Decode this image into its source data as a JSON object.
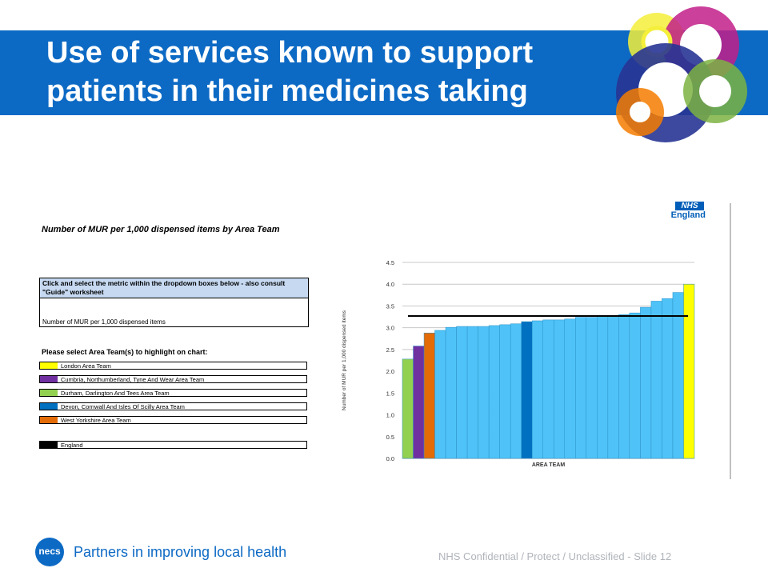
{
  "slide": {
    "title": "Use of services known to support patients in their medicines taking",
    "footer_tagline": "Partners in improving local health",
    "footer_right": "NHS Confidential / Protect / Unclassified - Slide 12",
    "logo_text": "necs",
    "colors": {
      "banner": "#0d6ac4"
    }
  },
  "panel": {
    "title": "Number of MUR per 1,000 dispensed items by Area Team",
    "dropdown_header": "Click and select the metric within the dropdown boxes below - also consult \"Guide\" worksheet",
    "dropdown_value": "Number of MUR per 1,000 dispensed items",
    "select_label": "Please select Area Team(s) to highlight on chart:",
    "legend": [
      {
        "label": "London Area Team",
        "color": "#ffff00"
      },
      {
        "label": "Cumbria, Northumberland, Tyne And Wear Area Team",
        "color": "#7030a0"
      },
      {
        "label": "Durham, Darlington And Tees Area Team",
        "color": "#92d050"
      },
      {
        "label": "Devon, Cornwall And Isles Of Scilly Area Team",
        "color": "#0070c0"
      },
      {
        "label": "West Yorkshire Area Team",
        "color": "#e36c09"
      },
      {
        "label": "England",
        "color": "#000000"
      }
    ]
  },
  "nhs_logo": {
    "box": "NHS",
    "text": "England"
  },
  "chart_data": {
    "type": "bar",
    "xlabel": "AREA TEAM",
    "ylabel": "Number of MUR per 1,000 dispensed items",
    "ylim": [
      0,
      4.5
    ],
    "ytick_labels": [
      "0.0",
      "0.5",
      "1.0",
      "1.5",
      "2.0",
      "2.5",
      "3.0",
      "3.5",
      "4.0",
      "4.5"
    ],
    "grid": true,
    "values": [
      2.28,
      2.58,
      2.88,
      2.94,
      3.01,
      3.03,
      3.03,
      3.03,
      3.05,
      3.07,
      3.09,
      3.14,
      3.16,
      3.18,
      3.18,
      3.2,
      3.24,
      3.24,
      3.26,
      3.28,
      3.3,
      3.34,
      3.47,
      3.61,
      3.67,
      3.81,
      4.0
    ],
    "colors": [
      "#92d050",
      "#7030a0",
      "#e36c09",
      "#4fc3f7",
      "#4fc3f7",
      "#4fc3f7",
      "#4fc3f7",
      "#4fc3f7",
      "#4fc3f7",
      "#4fc3f7",
      "#4fc3f7",
      "#0070c0",
      "#4fc3f7",
      "#4fc3f7",
      "#4fc3f7",
      "#4fc3f7",
      "#4fc3f7",
      "#4fc3f7",
      "#4fc3f7",
      "#4fc3f7",
      "#4fc3f7",
      "#4fc3f7",
      "#4fc3f7",
      "#4fc3f7",
      "#4fc3f7",
      "#4fc3f7",
      "#ffff00"
    ],
    "reference_line": {
      "series": "England",
      "value": 3.27,
      "color": "#000000"
    }
  }
}
